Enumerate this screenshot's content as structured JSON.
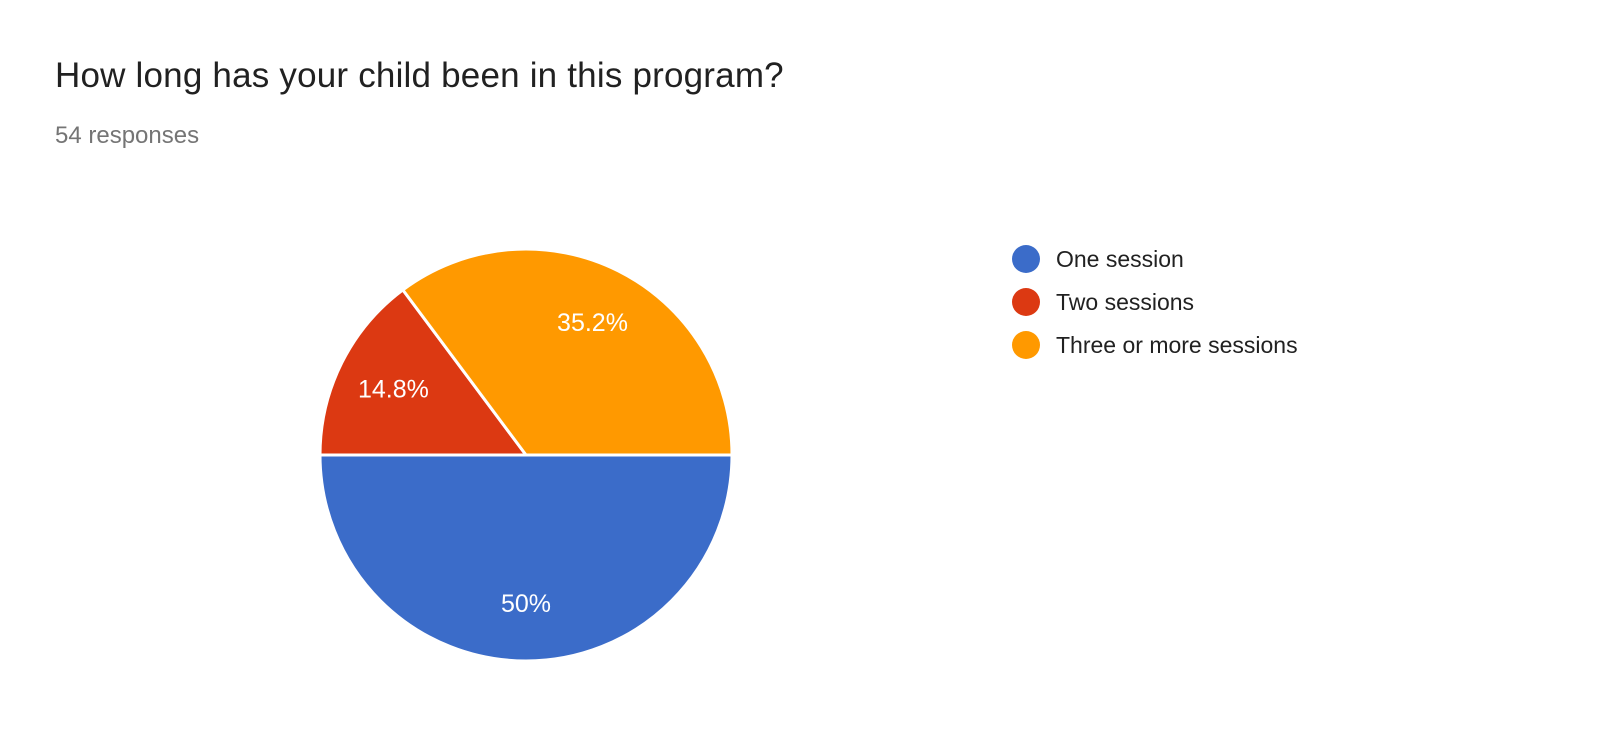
{
  "header": {
    "title": "How long has your child been in this program?",
    "subtitle": "54 responses"
  },
  "chart_data": {
    "type": "pie",
    "title": "How long has your child been in this program?",
    "subtitle": "54 responses",
    "total_responses": 54,
    "start_angle_deg": 0,
    "direction": "clockwise",
    "legend_position": "right",
    "label_color": "#ffffff",
    "slice_divider_color": "#ffffff",
    "slices": [
      {
        "label": "One session",
        "percent": 50,
        "percent_label": "50%",
        "color": "#3b6cc9"
      },
      {
        "label": "Two sessions",
        "percent": 14.8,
        "percent_label": "14.8%",
        "color": "#dc3912"
      },
      {
        "label": "Three or more sessions",
        "percent": 35.2,
        "percent_label": "35.2%",
        "color": "#ff9900"
      }
    ]
  }
}
